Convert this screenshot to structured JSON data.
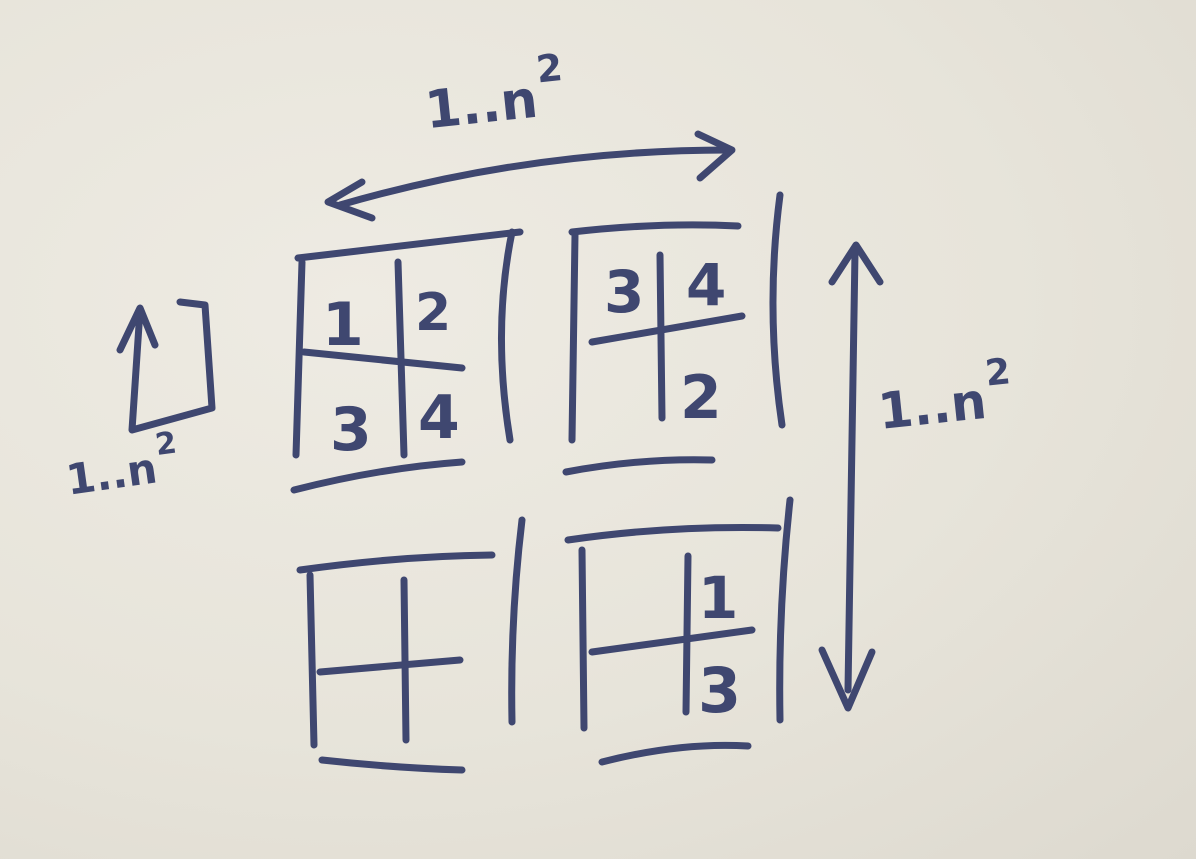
{
  "labels": {
    "range_top": "1..n",
    "range_top_exp": "2",
    "range_right": "1..n",
    "range_right_exp": "2",
    "range_left": "1..n",
    "range_left_exp": "2"
  },
  "blocks": {
    "top_left": [
      "1",
      "2",
      "3",
      "4"
    ],
    "top_right": [
      "3",
      "4",
      "2"
    ],
    "bottom_right": [
      "1",
      "3"
    ]
  },
  "colors": {
    "ink": "#3f4770",
    "paper": "#e9e6dd"
  }
}
